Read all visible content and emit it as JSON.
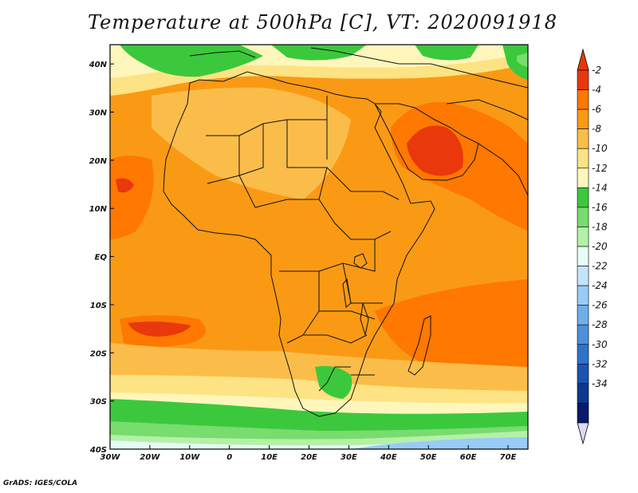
{
  "title": "Temperature at 500hPa [C], VT: 2020091918",
  "credit": "GrADS: IGES/COLA",
  "map": {
    "variable": "Temperature at 500hPa",
    "units": "C",
    "valid_time": "2020091918",
    "lon_range": [
      -30,
      75
    ],
    "lat_range": [
      -40,
      44
    ],
    "lon_ticks": [
      "30W",
      "20W",
      "10W",
      "0",
      "10E",
      "20E",
      "30E",
      "40E",
      "50E",
      "60E",
      "70E"
    ],
    "lon_values": [
      -30,
      -20,
      -10,
      0,
      10,
      20,
      30,
      40,
      50,
      60,
      70
    ],
    "lat_ticks": [
      "40N",
      "30N",
      "20N",
      "10N",
      "EQ",
      "10S",
      "20S",
      "30S",
      "40S"
    ],
    "lat_values": [
      40,
      30,
      20,
      10,
      0,
      -10,
      -20,
      -30,
      -40
    ]
  },
  "colorbar": {
    "labels": [
      "-2",
      "-4",
      "-6",
      "-8",
      "-10",
      "-12",
      "-14",
      "-16",
      "-18",
      "-20",
      "-22",
      "-24",
      "-26",
      "-28",
      "-30",
      "-32",
      "-34"
    ],
    "colors": [
      "#e8380c",
      "#ff7800",
      "#fa9a14",
      "#fbbd4a",
      "#fde384",
      "#fff6bc",
      "#3cc83c",
      "#78dc6e",
      "#b4f0a8",
      "#e6fcf5",
      "#c4e4fb",
      "#98cbf6",
      "#6eaeea",
      "#4e90dc",
      "#2e72cc",
      "#1a54b4",
      "#0c3890",
      "#0a186e"
    ],
    "top_arrow_color": "#e8380c",
    "bottom_arrow_color": "#dcd8f8"
  }
}
